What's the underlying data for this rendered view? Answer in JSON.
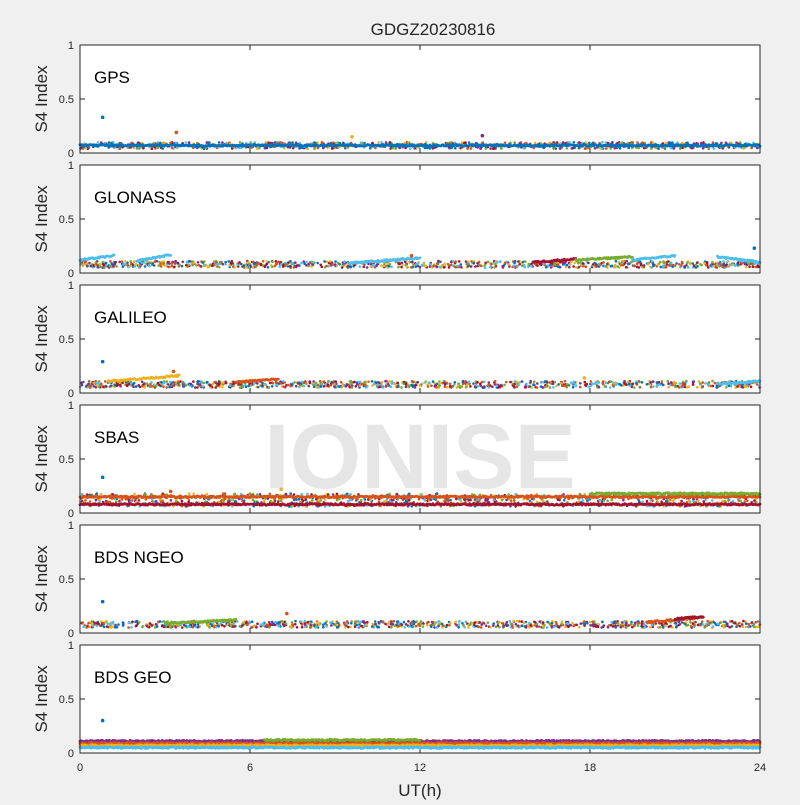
{
  "figure": {
    "title": "GDGZ20230816",
    "xlabel": "UT(h)",
    "watermark": "IONISE"
  },
  "chart_data": [
    {
      "type": "scatter",
      "panel": "GPS",
      "ylabel": "S4 Index",
      "xlim": [
        0,
        24
      ],
      "ylim": [
        0,
        1
      ],
      "xticks": [
        0,
        6,
        12,
        18,
        24
      ],
      "yticks": [
        0,
        0.5,
        1
      ],
      "y_tick_labels": [
        "0",
        "0.5",
        "1"
      ],
      "band": {
        "base": 0.07,
        "spread": 0.03
      },
      "series_colors": [
        "#0072BD",
        "#D95319",
        "#EDB120",
        "#7E2F8E",
        "#77AC30",
        "#4DBEEE",
        "#A2142F"
      ],
      "outliers": [
        [
          0.8,
          0.33
        ],
        [
          3.4,
          0.19
        ],
        [
          9.6,
          0.15
        ],
        [
          14.2,
          0.16
        ]
      ],
      "segments": [
        {
          "x0": 0,
          "x1": 24,
          "y": 0.07,
          "color_index": 0
        }
      ]
    },
    {
      "type": "scatter",
      "panel": "GLONASS",
      "ylabel": "S4 Index",
      "xlim": [
        0,
        24
      ],
      "ylim": [
        0,
        1
      ],
      "xticks": [
        0,
        6,
        12,
        18,
        24
      ],
      "yticks": [
        0,
        0.5,
        1
      ],
      "y_tick_labels": [
        "0",
        "0.5",
        "1"
      ],
      "band": {
        "base": 0.08,
        "spread": 0.03
      },
      "series_colors": [
        "#0072BD",
        "#D95319",
        "#EDB120",
        "#7E2F8E",
        "#77AC30",
        "#4DBEEE",
        "#A2142F"
      ],
      "outliers": [
        [
          23.8,
          0.23
        ],
        [
          11.7,
          0.16
        ]
      ],
      "segments": [
        {
          "x0": 0,
          "x1": 1.2,
          "y0": 0.12,
          "y1": 0.16,
          "color_index": 5
        },
        {
          "x0": 2.0,
          "x1": 3.2,
          "y0": 0.11,
          "y1": 0.17,
          "color_index": 5
        },
        {
          "x0": 9.5,
          "x1": 12.0,
          "y0": 0.09,
          "y1": 0.14,
          "color_index": 5
        },
        {
          "x0": 16.0,
          "x1": 17.5,
          "y0": 0.1,
          "y1": 0.13,
          "color_index": 6
        },
        {
          "x0": 17.5,
          "x1": 19.5,
          "y0": 0.12,
          "y1": 0.15,
          "color_index": 4
        },
        {
          "x0": 19.5,
          "x1": 21.0,
          "y0": 0.12,
          "y1": 0.16,
          "color_index": 5
        },
        {
          "x0": 22.5,
          "x1": 24.0,
          "y0": 0.15,
          "y1": 0.1,
          "color_index": 5
        }
      ]
    },
    {
      "type": "scatter",
      "panel": "GALILEO",
      "ylabel": "S4 Index",
      "xlim": [
        0,
        24
      ],
      "ylim": [
        0,
        1
      ],
      "xticks": [
        0,
        6,
        12,
        18,
        24
      ],
      "yticks": [
        0,
        0.5,
        1
      ],
      "y_tick_labels": [
        "0",
        "0.5",
        "1"
      ],
      "band": {
        "base": 0.08,
        "spread": 0.03
      },
      "series_colors": [
        "#0072BD",
        "#D95319",
        "#EDB120",
        "#7E2F8E",
        "#77AC30",
        "#4DBEEE",
        "#A2142F"
      ],
      "outliers": [
        [
          0.8,
          0.29
        ],
        [
          3.3,
          0.2
        ],
        [
          17.8,
          0.14
        ]
      ],
      "segments": [
        {
          "x0": 1.0,
          "x1": 3.5,
          "y0": 0.11,
          "y1": 0.16,
          "color_index": 2
        },
        {
          "x0": 5.5,
          "x1": 7.0,
          "y0": 0.1,
          "y1": 0.13,
          "color_index": 1
        },
        {
          "x0": 22.5,
          "x1": 24.0,
          "y0": 0.08,
          "y1": 0.11,
          "color_index": 5
        }
      ]
    },
    {
      "type": "scatter",
      "panel": "SBAS",
      "ylabel": "S4 Index",
      "xlim": [
        0,
        24
      ],
      "ylim": [
        0,
        1
      ],
      "xticks": [
        0,
        6,
        12,
        18,
        24
      ],
      "yticks": [
        0,
        0.5,
        1
      ],
      "y_tick_labels": [
        "0",
        "0.5",
        "1"
      ],
      "band": {
        "base": 0.12,
        "spread": 0.06
      },
      "series_colors": [
        "#0072BD",
        "#D95319",
        "#EDB120",
        "#7E2F8E",
        "#77AC30",
        "#4DBEEE",
        "#A2142F"
      ],
      "outliers": [
        [
          0.8,
          0.33
        ],
        [
          3.2,
          0.2
        ],
        [
          7.1,
          0.22
        ]
      ],
      "segments": [
        {
          "x0": 0,
          "x1": 24,
          "y": 0.15,
          "color_index": 1
        },
        {
          "x0": 0,
          "x1": 24,
          "y": 0.08,
          "color_index": 6
        },
        {
          "x0": 18.0,
          "x1": 24.0,
          "y": 0.18,
          "color_index": 4
        }
      ]
    },
    {
      "type": "scatter",
      "panel": "BDS NGEO",
      "ylabel": "S4 Index",
      "xlim": [
        0,
        24
      ],
      "ylim": [
        0,
        1
      ],
      "xticks": [
        0,
        6,
        12,
        18,
        24
      ],
      "yticks": [
        0,
        0.5,
        1
      ],
      "y_tick_labels": [
        "0",
        "0.5",
        "1"
      ],
      "band": {
        "base": 0.08,
        "spread": 0.03
      },
      "series_colors": [
        "#0072BD",
        "#D95319",
        "#EDB120",
        "#7E2F8E",
        "#77AC30",
        "#4DBEEE",
        "#A2142F"
      ],
      "outliers": [
        [
          0.8,
          0.29
        ],
        [
          7.3,
          0.18
        ]
      ],
      "segments": [
        {
          "x0": 3.0,
          "x1": 5.5,
          "y0": 0.09,
          "y1": 0.12,
          "color_index": 4
        },
        {
          "x0": 20.0,
          "x1": 21.8,
          "y0": 0.1,
          "y1": 0.14,
          "color_index": 1
        },
        {
          "x0": 21.0,
          "x1": 22.0,
          "y0": 0.13,
          "y1": 0.15,
          "color_index": 6
        }
      ]
    },
    {
      "type": "scatter",
      "panel": "BDS GEO",
      "ylabel": "S4 Index",
      "xlim": [
        0,
        24
      ],
      "ylim": [
        0,
        1
      ],
      "xticks": [
        0,
        6,
        12,
        18,
        24
      ],
      "yticks": [
        0,
        0.5,
        1
      ],
      "x_tick_labels": [
        "0",
        "6",
        "12",
        "18",
        "24"
      ],
      "y_tick_labels": [
        "0",
        "0.5",
        "1"
      ],
      "band": {
        "base": 0.09,
        "spread": 0.02
      },
      "series_colors": [
        "#0072BD",
        "#D95319",
        "#EDB120",
        "#7E2F8E",
        "#77AC30",
        "#4DBEEE",
        "#A2142F"
      ],
      "outliers": [
        [
          0.8,
          0.3
        ]
      ],
      "segments": [
        {
          "x0": 0,
          "x1": 24,
          "y": 0.11,
          "color_index": 3
        },
        {
          "x0": 0,
          "x1": 24,
          "y": 0.09,
          "color_index": 1
        },
        {
          "x0": 0,
          "x1": 24,
          "y": 0.07,
          "color_index": 2
        },
        {
          "x0": 0,
          "x1": 24,
          "y": 0.05,
          "color_index": 5
        },
        {
          "x0": 6.5,
          "x1": 12.0,
          "y": 0.12,
          "color_index": 4
        }
      ]
    }
  ]
}
